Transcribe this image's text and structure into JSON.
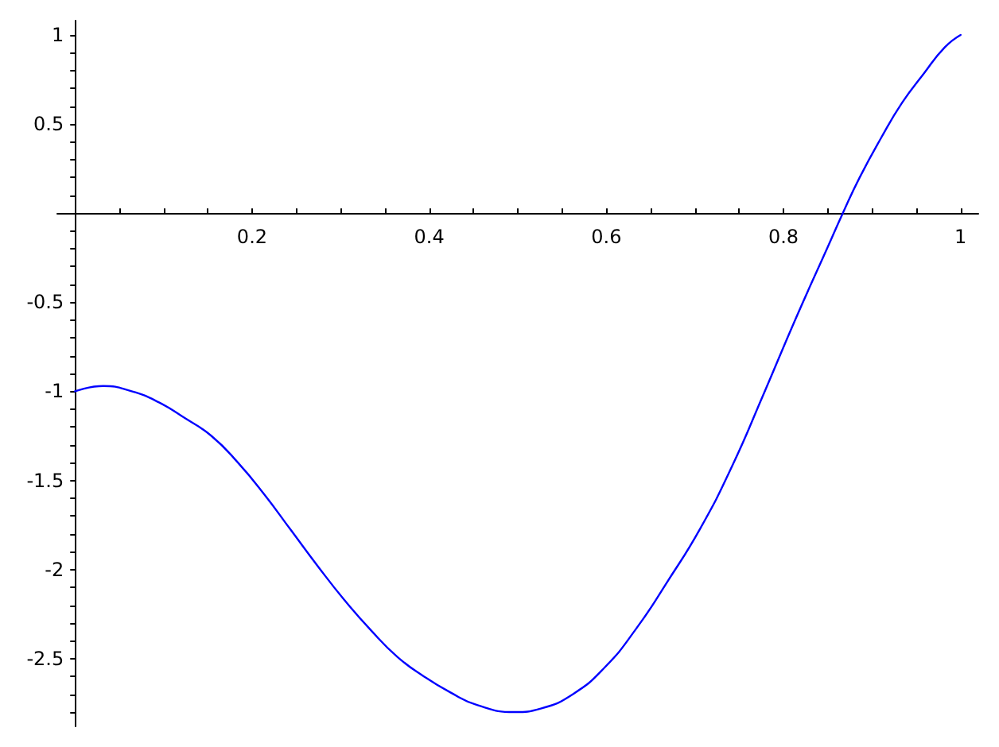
{
  "chart_data": {
    "type": "line",
    "x": [
      0,
      0.032,
      0.064,
      0.094,
      0.124,
      0.154,
      0.184,
      0.214,
      0.244,
      0.274,
      0.304,
      0.334,
      0.364,
      0.394,
      0.424,
      0.454,
      0.496,
      0.526,
      0.562,
      0.598,
      0.634,
      0.67,
      0.706,
      0.742,
      0.778,
      0.814,
      0.85,
      0.867,
      0.886,
      0.91,
      0.934,
      0.958,
      0.982,
      1
    ],
    "series": [
      {
        "color": "#0000ff",
        "values": [
          -1,
          -0.97,
          -1,
          -1.06,
          -1.15,
          -1.25,
          -1.4,
          -1.58,
          -1.78,
          -1.98,
          -2.17,
          -2.34,
          -2.49,
          -2.6,
          -2.69,
          -2.76,
          -2.8,
          -2.78,
          -2.7,
          -2.55,
          -2.33,
          -2.06,
          -1.77,
          -1.42,
          -1.01,
          -0.59,
          -0.19,
          0,
          0.2,
          0.42,
          0.62,
          0.78,
          0.93,
          1
        ]
      }
    ],
    "xlim": [
      -0.02,
      1.02
    ],
    "ylim": [
      -2.88,
      1.08
    ],
    "xticks": [
      {
        "value": 0.05,
        "label": null
      },
      {
        "value": 0.1,
        "label": null
      },
      {
        "value": 0.15,
        "label": null
      },
      0.2,
      {
        "value": 0.25,
        "label": null
      },
      {
        "value": 0.3,
        "label": null
      },
      {
        "value": 0.35,
        "label": null
      },
      0.4,
      {
        "value": 0.45,
        "label": null
      },
      {
        "value": 0.5,
        "label": null
      },
      {
        "value": 0.55,
        "label": null
      },
      0.6,
      {
        "value": 0.65,
        "label": null
      },
      {
        "value": 0.7,
        "label": null
      },
      {
        "value": 0.75,
        "label": null
      },
      0.8,
      {
        "value": 0.85,
        "label": null
      },
      {
        "value": 0.9,
        "label": null
      },
      {
        "value": 0.95,
        "label": null
      },
      1
    ],
    "yticks": [
      {
        "value": -2.8,
        "label": null
      },
      {
        "value": -2.7,
        "label": null
      },
      {
        "value": -2.6,
        "label": null
      },
      -2.5,
      {
        "value": -2.4,
        "label": null
      },
      {
        "value": -2.3,
        "label": null
      },
      {
        "value": -2.2,
        "label": null
      },
      {
        "value": -2.1,
        "label": null
      },
      -2,
      {
        "value": -1.9,
        "label": null
      },
      {
        "value": -1.8,
        "label": null
      },
      {
        "value": -1.7,
        "label": null
      },
      {
        "value": -1.6,
        "label": null
      },
      -1.5,
      {
        "value": -1.4,
        "label": null
      },
      {
        "value": -1.3,
        "label": null
      },
      {
        "value": -1.2,
        "label": null
      },
      {
        "value": -1.1,
        "label": null
      },
      -1,
      {
        "value": -0.9,
        "label": null
      },
      {
        "value": -0.8,
        "label": null
      },
      {
        "value": -0.7,
        "label": null
      },
      {
        "value": -0.6,
        "label": null
      },
      -0.5,
      {
        "value": -0.4,
        "label": null
      },
      {
        "value": -0.3,
        "label": null
      },
      {
        "value": -0.2,
        "label": null
      },
      {
        "value": -0.1,
        "label": null
      },
      {
        "value": 0.1,
        "label": null
      },
      {
        "value": 0.2,
        "label": null
      },
      {
        "value": 0.3,
        "label": null
      },
      {
        "value": 0.4,
        "label": null
      },
      0.5,
      {
        "value": 0.6,
        "label": null
      },
      {
        "value": 0.7,
        "label": null
      },
      {
        "value": 0.8,
        "label": null
      },
      {
        "value": 0.9,
        "label": null
      },
      1
    ],
    "marker": "none",
    "line_style": "solid"
  }
}
